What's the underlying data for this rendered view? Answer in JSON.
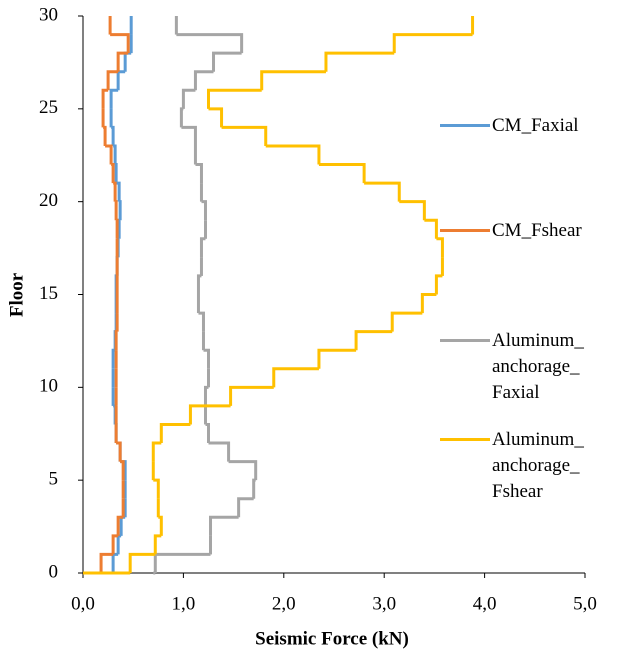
{
  "chart_data": {
    "type": "step-line",
    "x_label": "Seismic Force (kN)",
    "y_label": "Floor",
    "xlim": [
      0,
      5
    ],
    "ylim": [
      0,
      30
    ],
    "xticks": [
      {
        "value": 0,
        "label": "0,0"
      },
      {
        "value": 1,
        "label": "1,0"
      },
      {
        "value": 2,
        "label": "2,0"
      },
      {
        "value": 3,
        "label": "3,0"
      },
      {
        "value": 4,
        "label": "4,0"
      },
      {
        "value": 5,
        "label": "5,0"
      }
    ],
    "yticks": [
      0,
      5,
      10,
      15,
      20,
      25,
      30
    ],
    "y": [
      0,
      1,
      2,
      3,
      4,
      5,
      6,
      7,
      8,
      9,
      10,
      11,
      12,
      13,
      14,
      15,
      16,
      17,
      18,
      19,
      20,
      21,
      22,
      23,
      24,
      25,
      26,
      27,
      28,
      29,
      30
    ],
    "series": [
      {
        "name": "CM_Faxial",
        "color": "#5b9bd5",
        "values": [
          0.3,
          0.3,
          0.35,
          0.38,
          0.42,
          0.42,
          0.42,
          0.37,
          0.33,
          0.32,
          0.3,
          0.3,
          0.3,
          0.32,
          0.33,
          0.33,
          0.33,
          0.34,
          0.35,
          0.36,
          0.37,
          0.36,
          0.33,
          0.32,
          0.3,
          0.28,
          0.28,
          0.35,
          0.42,
          0.48,
          0.48
        ]
      },
      {
        "name": "CM_Fshear",
        "color": "#ed7d31",
        "values": [
          0.18,
          0.18,
          0.3,
          0.35,
          0.4,
          0.4,
          0.4,
          0.37,
          0.33,
          0.33,
          0.33,
          0.33,
          0.33,
          0.33,
          0.34,
          0.34,
          0.34,
          0.34,
          0.34,
          0.34,
          0.33,
          0.32,
          0.3,
          0.28,
          0.22,
          0.2,
          0.2,
          0.25,
          0.35,
          0.45,
          0.27
        ]
      },
      {
        "name": "Aluminum_\nanchorage_\nFaxial",
        "color": "#a5a5a5",
        "values": [
          0.7,
          0.72,
          1.27,
          1.27,
          1.55,
          1.7,
          1.72,
          1.45,
          1.25,
          1.22,
          1.22,
          1.25,
          1.25,
          1.2,
          1.2,
          1.15,
          1.15,
          1.18,
          1.18,
          1.22,
          1.22,
          1.18,
          1.18,
          1.12,
          1.12,
          0.98,
          1.0,
          1.12,
          1.3,
          1.58,
          0.93
        ]
      },
      {
        "name": "Aluminum_\nanchorage_\nFshear",
        "color": "#ffc000",
        "values": [
          0.0,
          0.47,
          0.72,
          0.78,
          0.75,
          0.75,
          0.7,
          0.7,
          0.78,
          1.07,
          1.47,
          1.9,
          2.35,
          2.72,
          3.08,
          3.38,
          3.52,
          3.58,
          3.58,
          3.52,
          3.4,
          3.15,
          2.8,
          2.35,
          1.82,
          1.38,
          1.25,
          1.78,
          2.42,
          3.1,
          3.88
        ]
      }
    ]
  }
}
